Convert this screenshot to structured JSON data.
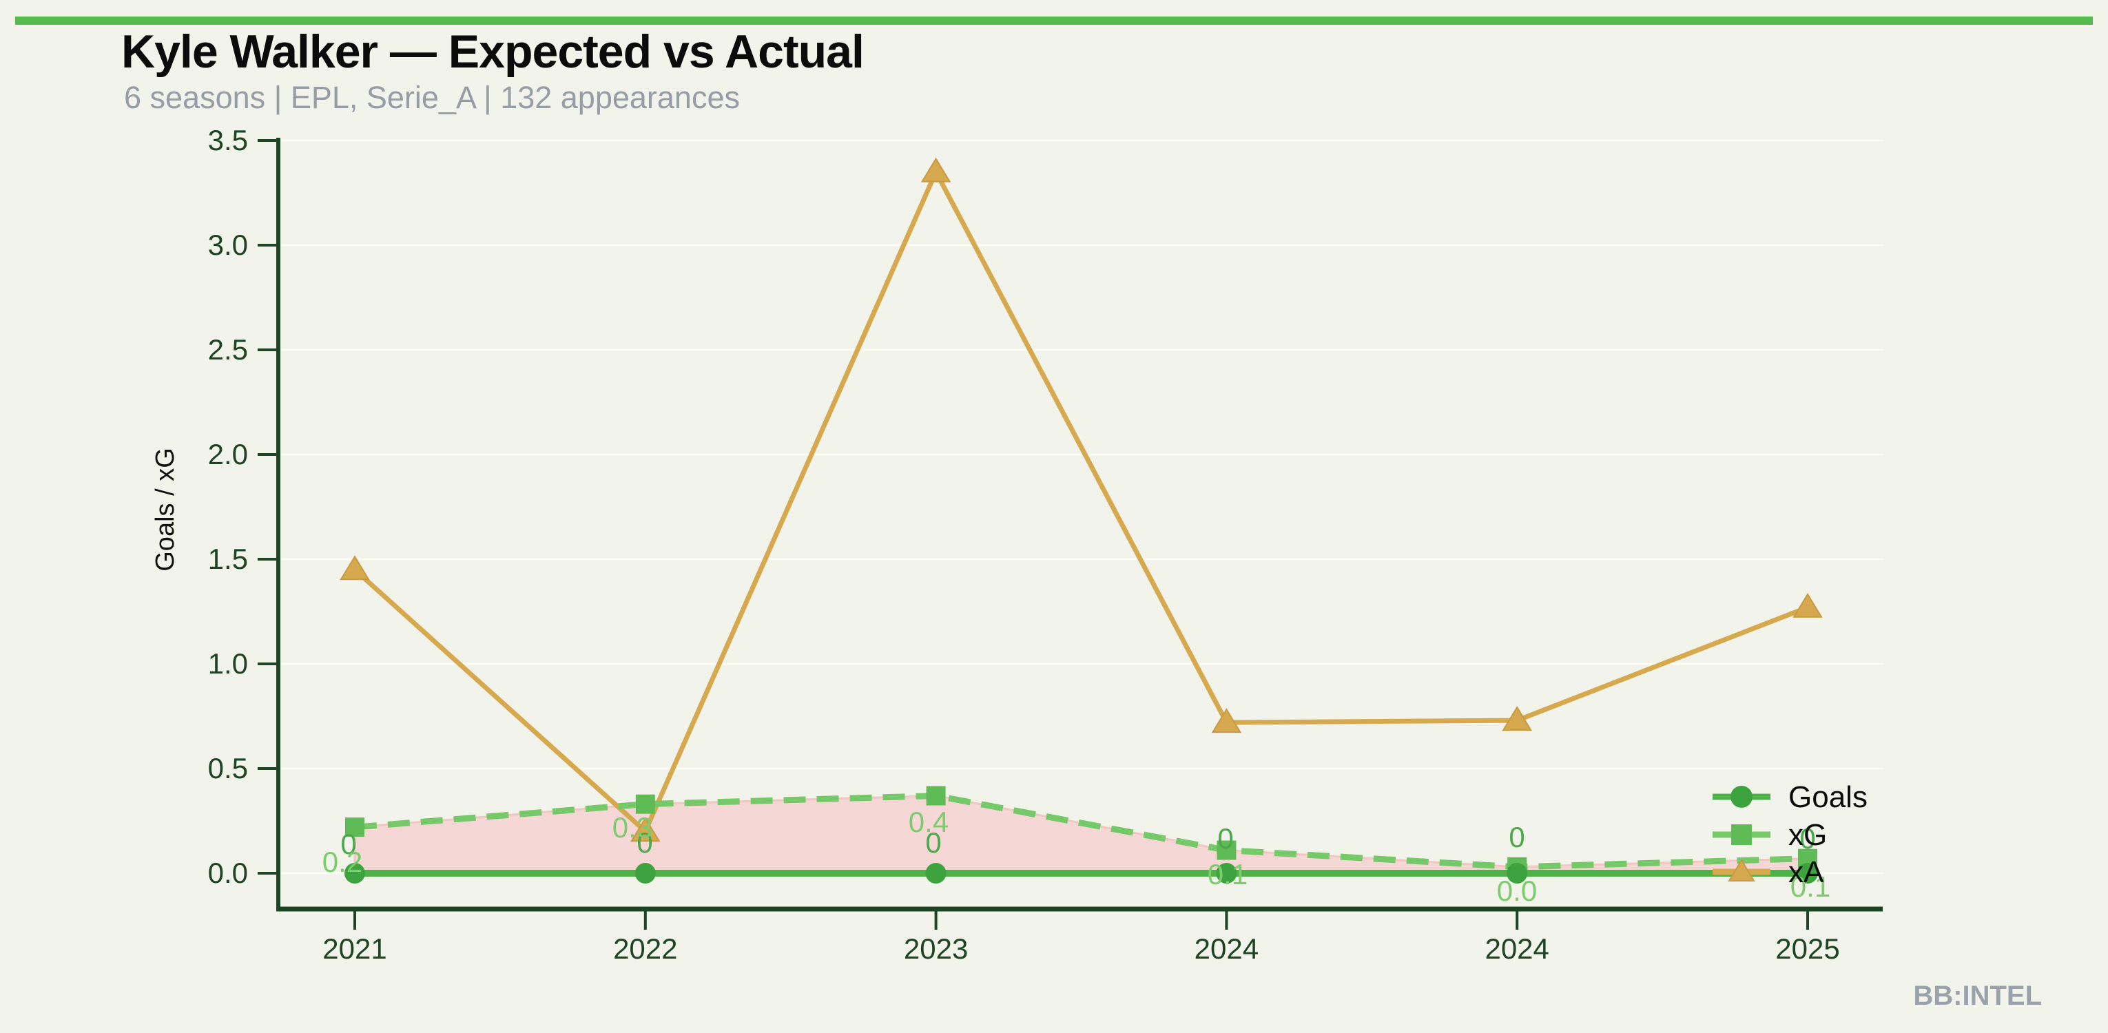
{
  "header": {
    "title": "Kyle Walker — Expected vs Actual",
    "subtitle": "6 seasons | EPL, Serie_A | 132 appearances"
  },
  "watermark": "BB:INTEL",
  "colors": {
    "topbar": "#57ba4d",
    "background": "#f2f3ea",
    "axis": "#1d4524",
    "gridline": "#fbfcf4",
    "subtitle_gray": "#979da7",
    "watermark_gray": "#9aa3ac",
    "goals_line": "#4fb148",
    "goals_marker": "#3da33f",
    "xg_line": "#76c968",
    "xg_marker": "#5fbb55",
    "xa_line": "#d7a94f",
    "fill_pink": "#f5d8d5",
    "fill_pink_edge": "#f2c6c2",
    "label_green_light": "#7ccb6d",
    "label_green_dark": "#4aa94a"
  },
  "chart_data": {
    "type": "line",
    "title": "Kyle Walker — Expected vs Actual",
    "subtitle": "6 seasons | EPL, Serie_A | 132 appearances",
    "categories": [
      "2021",
      "2022",
      "2023",
      "2024",
      "2024",
      "2025"
    ],
    "series": [
      {
        "name": "Goals",
        "marker": "circle",
        "style": "solid",
        "values": [
          0,
          0,
          0,
          0,
          0,
          0
        ],
        "point_labels": [
          "0",
          "0",
          "0",
          "0",
          "0",
          "0"
        ]
      },
      {
        "name": "xG",
        "marker": "square",
        "style": "dashed",
        "values": [
          0.22,
          0.33,
          0.37,
          0.11,
          0.03,
          0.07
        ],
        "point_labels": [
          "0.2",
          "0.3",
          "0.4",
          "0.1",
          "0.0",
          "0.1"
        ]
      },
      {
        "name": "xA",
        "marker": "triangle",
        "style": "solid",
        "values": [
          1.45,
          0.2,
          3.35,
          0.72,
          0.73,
          1.27
        ],
        "point_labels": []
      }
    ],
    "xlabel": "",
    "ylabel": "Goals / xG",
    "ylim": [
      0,
      3.5
    ],
    "ytick_labels": [
      "0.0",
      "0.5",
      "1.0",
      "1.5",
      "2.0",
      "2.5",
      "3.0",
      "3.5"
    ],
    "grid": "horizontal-faint",
    "fill_between": {
      "upper": "xG",
      "lower": "Goals"
    },
    "legend": {
      "position": "lower-right-inside",
      "entries": [
        "Goals",
        "xG",
        "xA"
      ]
    }
  }
}
